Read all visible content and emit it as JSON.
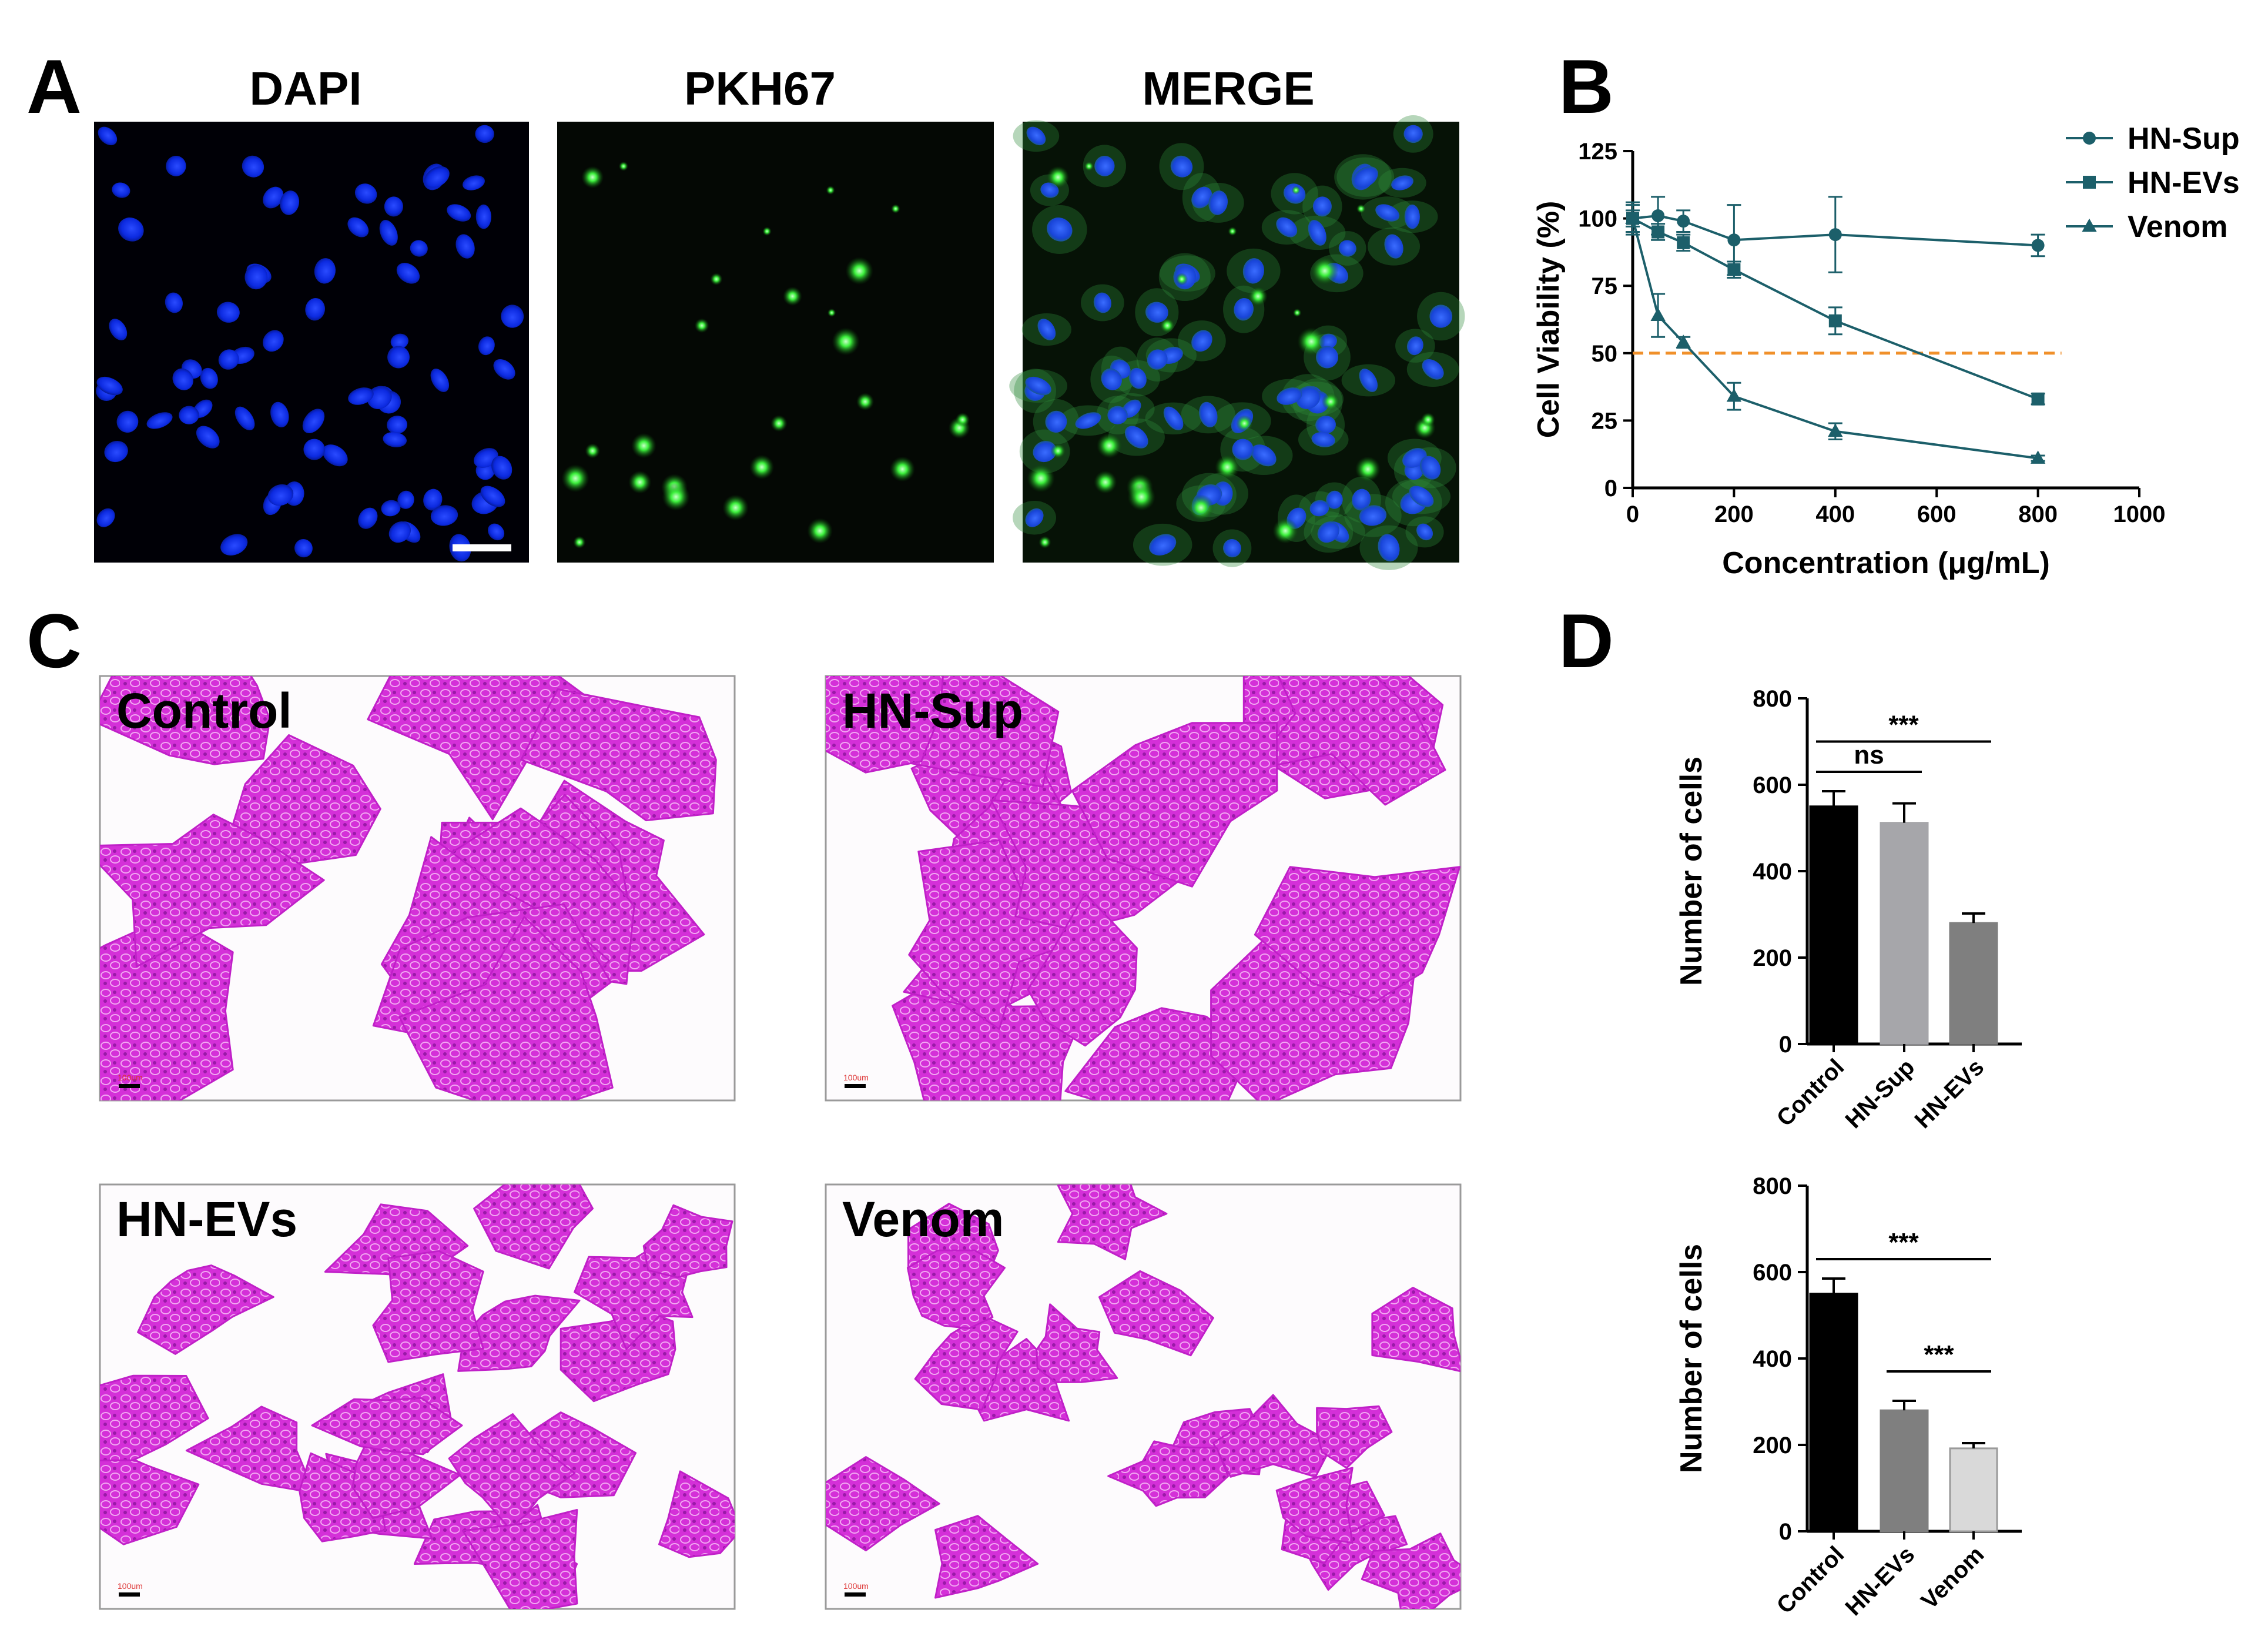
{
  "panels": {
    "a": {
      "letter": "A",
      "titles": [
        "DAPI",
        "PKH67",
        "MERGE"
      ]
    },
    "b": {
      "letter": "B"
    },
    "c": {
      "letter": "C",
      "labels": [
        "Control",
        "HN-Sup",
        "HN-EVs",
        "Venom"
      ],
      "scale_label": "100um"
    },
    "d": {
      "letter": "D"
    }
  },
  "chart_data": [
    {
      "id": "viability",
      "type": "line",
      "xlabel": "Concentration (μg/mL)",
      "ylabel": "Cell Viability (%)",
      "xlim": [
        0,
        1000
      ],
      "ylim": [
        0,
        125
      ],
      "xticks": [
        0,
        200,
        400,
        600,
        800,
        1000
      ],
      "yticks": [
        0,
        25,
        50,
        75,
        100,
        125
      ],
      "reference_line": {
        "y": 50,
        "x_range": [
          0,
          800
        ],
        "color": "#f0902a",
        "style": "dashed"
      },
      "legend_position": "top-right",
      "color": "#1c5f6a",
      "series": [
        {
          "name": "HN-Sup",
          "marker": "circle",
          "x": [
            0,
            50,
            100,
            200,
            400,
            800
          ],
          "y": [
            100,
            101,
            99,
            92,
            94,
            90
          ],
          "err": [
            6,
            7,
            4,
            13,
            14,
            4
          ]
        },
        {
          "name": "HN-EVs",
          "marker": "square",
          "x": [
            0,
            50,
            100,
            200,
            400,
            800
          ],
          "y": [
            100,
            95,
            91,
            81,
            62,
            33
          ],
          "err": [
            3,
            3,
            3,
            3,
            5,
            2
          ]
        },
        {
          "name": "Venom",
          "marker": "triangle",
          "x": [
            0,
            50,
            100,
            200,
            400,
            800
          ],
          "y": [
            100,
            64,
            54,
            34,
            21,
            11
          ],
          "err": [
            5,
            8,
            2,
            5,
            3,
            1
          ]
        }
      ]
    },
    {
      "id": "cells-1",
      "type": "bar",
      "ylabel": "Number of cells",
      "ylim": [
        0,
        800
      ],
      "yticks": [
        0,
        200,
        400,
        600,
        800
      ],
      "categories": [
        "Control",
        "HN-Sup",
        "HN-EVs"
      ],
      "values": [
        550,
        512,
        280
      ],
      "errors": [
        35,
        45,
        22
      ],
      "colors": [
        "#000000",
        "#a6a6aa",
        "#7f7f7f"
      ],
      "significance": [
        {
          "label": "***",
          "from": 0,
          "to": 2,
          "y": 700
        },
        {
          "label": "ns",
          "from": 0,
          "to": 1,
          "y": 630
        }
      ]
    },
    {
      "id": "cells-2",
      "type": "bar",
      "ylabel": "Number of cells",
      "ylim": [
        0,
        800
      ],
      "yticks": [
        0,
        200,
        400,
        600,
        800
      ],
      "categories": [
        "Control",
        "HN-EVs",
        "Venom"
      ],
      "values": [
        550,
        280,
        192
      ],
      "errors": [
        35,
        22,
        12
      ],
      "colors": [
        "#000000",
        "#7f7f7f",
        "#d9d9d9"
      ],
      "significance": [
        {
          "label": "***",
          "from": 0,
          "to": 2,
          "y": 630
        },
        {
          "label": "***",
          "from": 1,
          "to": 2,
          "y": 370
        }
      ]
    }
  ]
}
